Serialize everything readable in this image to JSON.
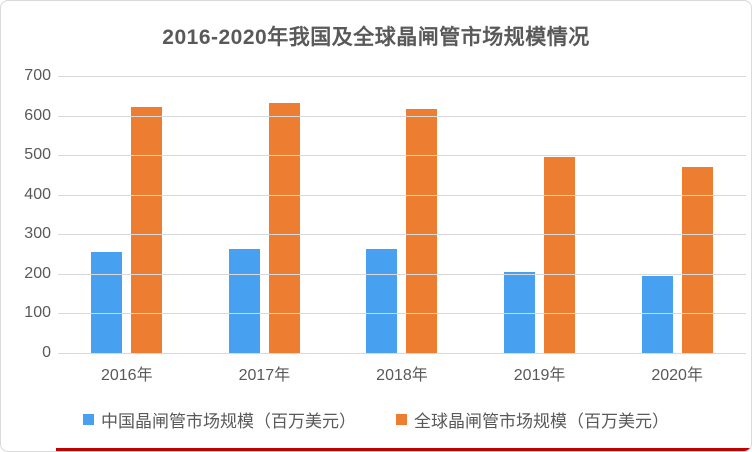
{
  "title": "2016-2020年我国及全球晶闸管市场规模情况",
  "chart_data": {
    "type": "bar",
    "categories": [
      "2016年",
      "2017年",
      "2018年",
      "2019年",
      "2020年"
    ],
    "series": [
      {
        "key": "china",
        "name": "中国晶闸管市场规模（百万美元）",
        "color": "#47A0F0",
        "values": [
          255,
          262,
          262,
          205,
          195
        ]
      },
      {
        "key": "global",
        "name": "全球晶闸管市场规模（百万美元）",
        "color": "#ED7D31",
        "values": [
          622,
          632,
          616,
          495,
          469
        ]
      }
    ],
    "ylabel": "",
    "xlabel": "",
    "ylim": [
      0,
      700
    ],
    "ytick_step": 100,
    "yticks": [
      0,
      100,
      200,
      300,
      400,
      500,
      600,
      700
    ],
    "grid": true,
    "legend_position": "bottom"
  },
  "colors": {
    "bar_china": "#47A0F0",
    "bar_global": "#ED7D31",
    "text": "#595959",
    "gridline": "#D9D9D9",
    "card_border": "#D9D9D9",
    "footer_line": "#C00000",
    "background": "#FFFFFF"
  }
}
